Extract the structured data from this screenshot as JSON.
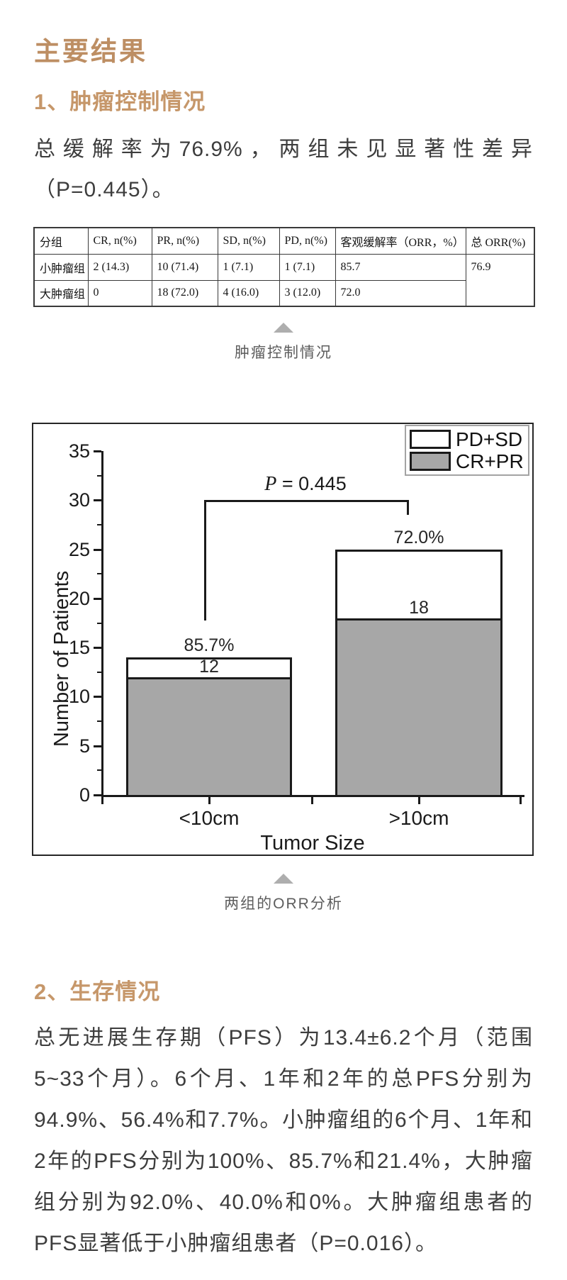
{
  "page": {
    "title_color": "#bd8e63",
    "heading_color": "#c6976a",
    "body_text_color": "#3d3d3d",
    "caption_color": "#5d5d5d",
    "bar_gray": "#a7a7a7"
  },
  "main_title": "主要结果",
  "section1": {
    "heading": "1、肿瘤控制情况",
    "paragraph": "总缓解率为76.9%，两组未见显著性差异（P=0.445）。"
  },
  "table": {
    "headers": [
      "分组",
      "CR, n(%)",
      "PR, n(%)",
      "SD, n(%)",
      "PD, n(%)",
      "客观缓解率（ORR，%）",
      "总 ORR(%)"
    ],
    "rows": [
      [
        "小肿瘤组",
        "2 (14.3)",
        "10 (71.4)",
        "1 (7.1)",
        "1 (7.1)",
        "85.7",
        "76.9"
      ],
      [
        "大肿瘤组",
        "0",
        "18 (72.0)",
        "4 (16.0)",
        "3 (12.0)",
        "72.0",
        ""
      ]
    ],
    "caption": "肿瘤控制情况"
  },
  "chart_caption": "两组的ORR分析",
  "section2": {
    "heading": "2、生存情况",
    "paragraph": "总无进展生存期（PFS）为13.4±6.2个月（范围5~33个月）。6个月、1年和2年的总PFS分别为94.9%、56.4%和7.7%。小肿瘤组的6个月、1年和2年的PFS分别为100%、85.7%和21.4%，大肿瘤组分别为92.0%、40.0%和0%。大肿瘤组患者的PFS显著低于小肿瘤组患者（P=0.016）。"
  },
  "chart_data": {
    "type": "bar",
    "stacked": true,
    "title": "",
    "categories": [
      "<10cm",
      ">10cm"
    ],
    "series": [
      {
        "name": "CR+PR",
        "values": [
          12,
          18
        ],
        "color": "#a7a7a7"
      },
      {
        "name": "PD+SD",
        "values": [
          2,
          7
        ],
        "color": "#ffffff"
      }
    ],
    "totals": [
      14,
      25
    ],
    "bar_percent_labels": [
      "85.7%",
      "72.0%"
    ],
    "bar_count_labels": [
      "12",
      "18"
    ],
    "p_label": {
      "symbol": "P",
      "rest": " = 0.445"
    },
    "p_bracket_y": 30,
    "xlabel": "Tumor Size",
    "ylabel": "Number of Patients",
    "ylim": [
      0,
      35
    ],
    "ytick_step": 5,
    "legend": [
      "PD+SD",
      "CR+PR"
    ],
    "legend_position": "top-right",
    "grid": false
  }
}
